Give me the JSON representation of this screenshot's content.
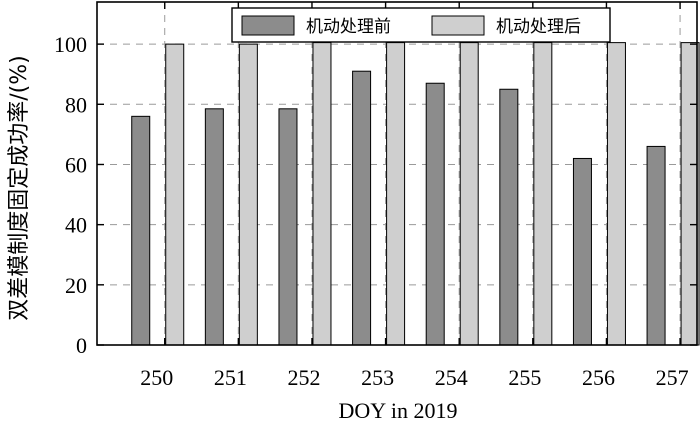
{
  "chart_data": {
    "type": "bar",
    "xlabel": "DOY in 2019",
    "ylabel": "双差模制度固定成功率/(%)",
    "categories": [
      "250",
      "251",
      "252",
      "253",
      "254",
      "255",
      "256",
      "257"
    ],
    "series": [
      {
        "name": "机动处理前",
        "values": [
          76,
          78.5,
          78.5,
          91,
          87,
          85,
          62,
          66
        ],
        "color": "#8c8c8c"
      },
      {
        "name": "机动处理后",
        "values": [
          100,
          100,
          100.5,
          100.5,
          100.5,
          100.5,
          100.5,
          100.5
        ],
        "color": "#cfcfcf"
      }
    ],
    "ylim": [
      0,
      114
    ],
    "yticks": [
      0,
      20,
      40,
      60,
      80,
      100
    ],
    "grid": "dashed",
    "legend_position": "top"
  }
}
